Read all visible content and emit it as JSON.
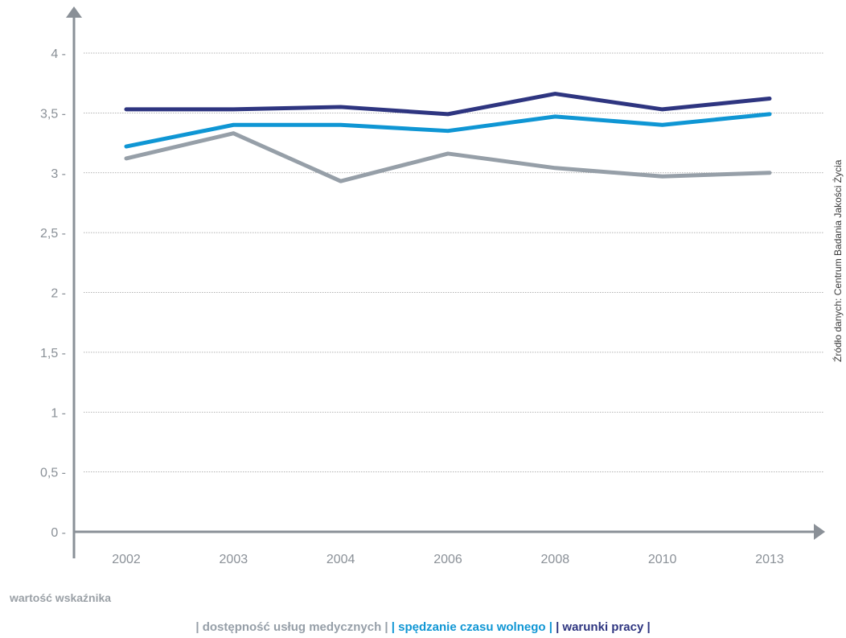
{
  "chart_data": {
    "type": "line",
    "categories": [
      "2002",
      "2003",
      "2004",
      "2006",
      "2008",
      "2010",
      "2013"
    ],
    "series": [
      {
        "name": "dostępność usług medycznych",
        "color": "#969fa8",
        "values": [
          3.12,
          3.33,
          2.93,
          3.16,
          3.04,
          2.97,
          3.0
        ]
      },
      {
        "name": "spędzanie czasu wolnego",
        "color": "#0f96d4",
        "values": [
          3.22,
          3.4,
          3.4,
          3.35,
          3.47,
          3.4,
          3.49
        ]
      },
      {
        "name": "warunki pracy",
        "color": "#2e3580",
        "values": [
          3.53,
          3.53,
          3.55,
          3.49,
          3.66,
          3.53,
          3.62
        ]
      }
    ],
    "y_ticks": [
      "0",
      "0,5",
      "1",
      "1,5",
      "2",
      "2,5",
      "3",
      "3,5",
      "4"
    ],
    "ylim": [
      0,
      4
    ],
    "ylabel": "wartość wskaźnika",
    "source": "Źródło danych: Centrum Badania Jakości Życia",
    "grid": true,
    "legend_position": "bottom"
  }
}
